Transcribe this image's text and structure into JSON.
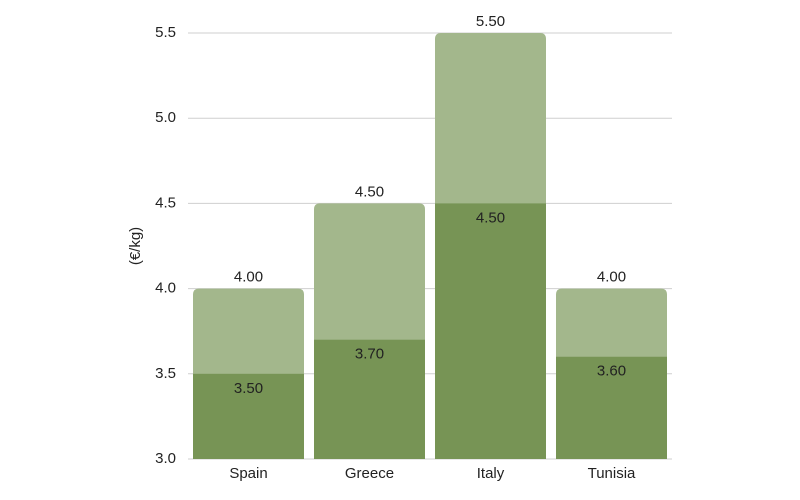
{
  "chart_data": {
    "type": "bar",
    "y_label": "(€/kg)",
    "categories": [
      "Spain",
      "Greece",
      "Italy",
      "Tunisia"
    ],
    "series": [
      {
        "color": "#a3b78c",
        "values": [
          4.0,
          4.5,
          5.5,
          4.0
        ],
        "value_labels": [
          "4.00",
          "4.50",
          "5.50",
          "4.00"
        ]
      },
      {
        "color": "#779455",
        "values": [
          3.5,
          3.7,
          4.5,
          3.6
        ],
        "value_labels": [
          "3.50",
          "3.70",
          "4.50",
          "3.60"
        ]
      }
    ],
    "ylim": [
      3.0,
      5.5
    ],
    "yticks": [
      {
        "value": 3,
        "label": "3.0"
      },
      {
        "value": 3.5,
        "label": "3.5"
      },
      {
        "value": 4,
        "label": "4.0"
      },
      {
        "value": 4.5,
        "label": "4.5"
      },
      {
        "value": 5,
        "label": "5.0"
      },
      {
        "value": 5.5,
        "label": "5.5"
      }
    ],
    "grid": true
  }
}
